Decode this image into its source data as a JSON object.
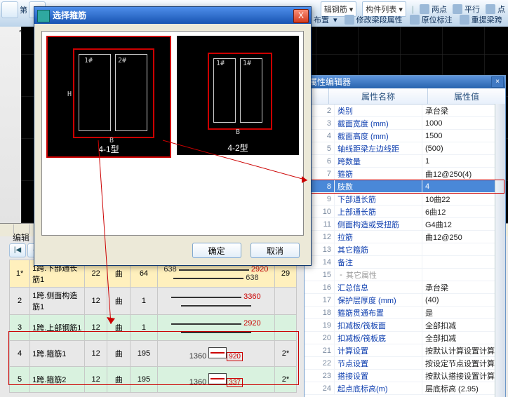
{
  "toolbar": {
    "dropdowns": [
      "辑钢筋",
      "构件列表"
    ],
    "right_labels": [
      "两点",
      "平行",
      "点"
    ],
    "row2": [
      {
        "l": "布置"
      },
      {
        "l": "修改梁段属性"
      },
      {
        "l": "原位标注"
      },
      {
        "l": "重提梁跨"
      }
    ],
    "left_label": "第"
  },
  "ruler_left": "A",
  "bottom_tabs": [
    "",
    ""
  ],
  "mid_label": "编辑",
  "nav_icons": [
    "|◀",
    "◀",
    "▶",
    "▶|",
    "",
    "",
    "",
    "",
    "",
    "",
    ""
  ],
  "lower_table": {
    "rows": [
      {
        "n": "1*",
        "desc": "1跨.下部通长筋1",
        "a": "22",
        "b": "曲",
        "c": "64",
        "left": "638",
        "mid": "2920",
        "right": "638",
        "tail": "29"
      },
      {
        "n": "2",
        "desc": "1跨.侧面构造筋1",
        "a": "12",
        "b": "曲",
        "c": "1",
        "left": "",
        "mid": "3360",
        "right": "",
        "tail": ""
      },
      {
        "n": "3",
        "desc": "1跨.上部钢筋1",
        "a": "12",
        "b": "曲",
        "c": "1",
        "left": "",
        "mid": "2920",
        "right": "",
        "tail": ""
      },
      {
        "n": "4",
        "desc": "1跨.箍筋1",
        "a": "12",
        "b": "曲",
        "c": "195",
        "left": "1360",
        "mid": "920",
        "right": "",
        "tail": "2*"
      },
      {
        "n": "5",
        "desc": "1跨.箍筋2",
        "a": "12",
        "b": "曲",
        "c": "195",
        "left": "1360",
        "mid": "337",
        "right": "",
        "tail": "2*"
      }
    ]
  },
  "dialog": {
    "title": "选择箍筋",
    "ok": "确定",
    "cancel": "取消",
    "caps": [
      "4-1型",
      "4-2型"
    ],
    "labels_left": [
      "1#",
      "2#"
    ],
    "labels_right": [
      "1#",
      "1#"
    ]
  },
  "property_panel": {
    "title": "属性编辑器",
    "h_name": "属性名称",
    "h_val": "属性值",
    "rows": [
      {
        "n": "2",
        "k": "类别",
        "v": "承台梁"
      },
      {
        "n": "3",
        "k": "截面宽度 (mm)",
        "v": "1000"
      },
      {
        "n": "4",
        "k": "截面高度 (mm)",
        "v": "1500"
      },
      {
        "n": "5",
        "k": "轴线距梁左边线距",
        "v": "(500)"
      },
      {
        "n": "6",
        "k": "跨数量",
        "v": "1"
      },
      {
        "n": "7",
        "k": "箍筋",
        "v": "曲12@250(4)"
      },
      {
        "n": "8",
        "k": "肢数",
        "v": "4",
        "hl": true
      },
      {
        "n": "9",
        "k": "下部通长筋",
        "v": "10曲22"
      },
      {
        "n": "10",
        "k": "上部通长筋",
        "v": "6曲12"
      },
      {
        "n": "11",
        "k": "侧面构造或受扭筋",
        "v": "G4曲12"
      },
      {
        "n": "12",
        "k": "拉筋",
        "v": "曲12@250"
      },
      {
        "n": "13",
        "k": "其它箍筋",
        "v": ""
      },
      {
        "n": "14",
        "k": "备注",
        "v": ""
      },
      {
        "n": "15",
        "k": "其它属性",
        "v": "",
        "sec": true,
        "tree": "-"
      },
      {
        "n": "16",
        "k": "汇总信息",
        "v": "承台梁"
      },
      {
        "n": "17",
        "k": "保护层厚度 (mm)",
        "v": "(40)"
      },
      {
        "n": "18",
        "k": "箍筋贯通布置",
        "v": "是"
      },
      {
        "n": "19",
        "k": "扣减板/筏板面",
        "v": "全部扣减"
      },
      {
        "n": "20",
        "k": "扣减板/筏板底",
        "v": "全部扣减"
      },
      {
        "n": "21",
        "k": "计算设置",
        "v": "按默认计算设置计算"
      },
      {
        "n": "22",
        "k": "节点设置",
        "v": "按设定节点设置计算"
      },
      {
        "n": "23",
        "k": "搭接设置",
        "v": "按默认搭接设置计算"
      },
      {
        "n": "24",
        "k": "起点底标高(m)",
        "v": "层底标高 (2.95)"
      }
    ]
  }
}
